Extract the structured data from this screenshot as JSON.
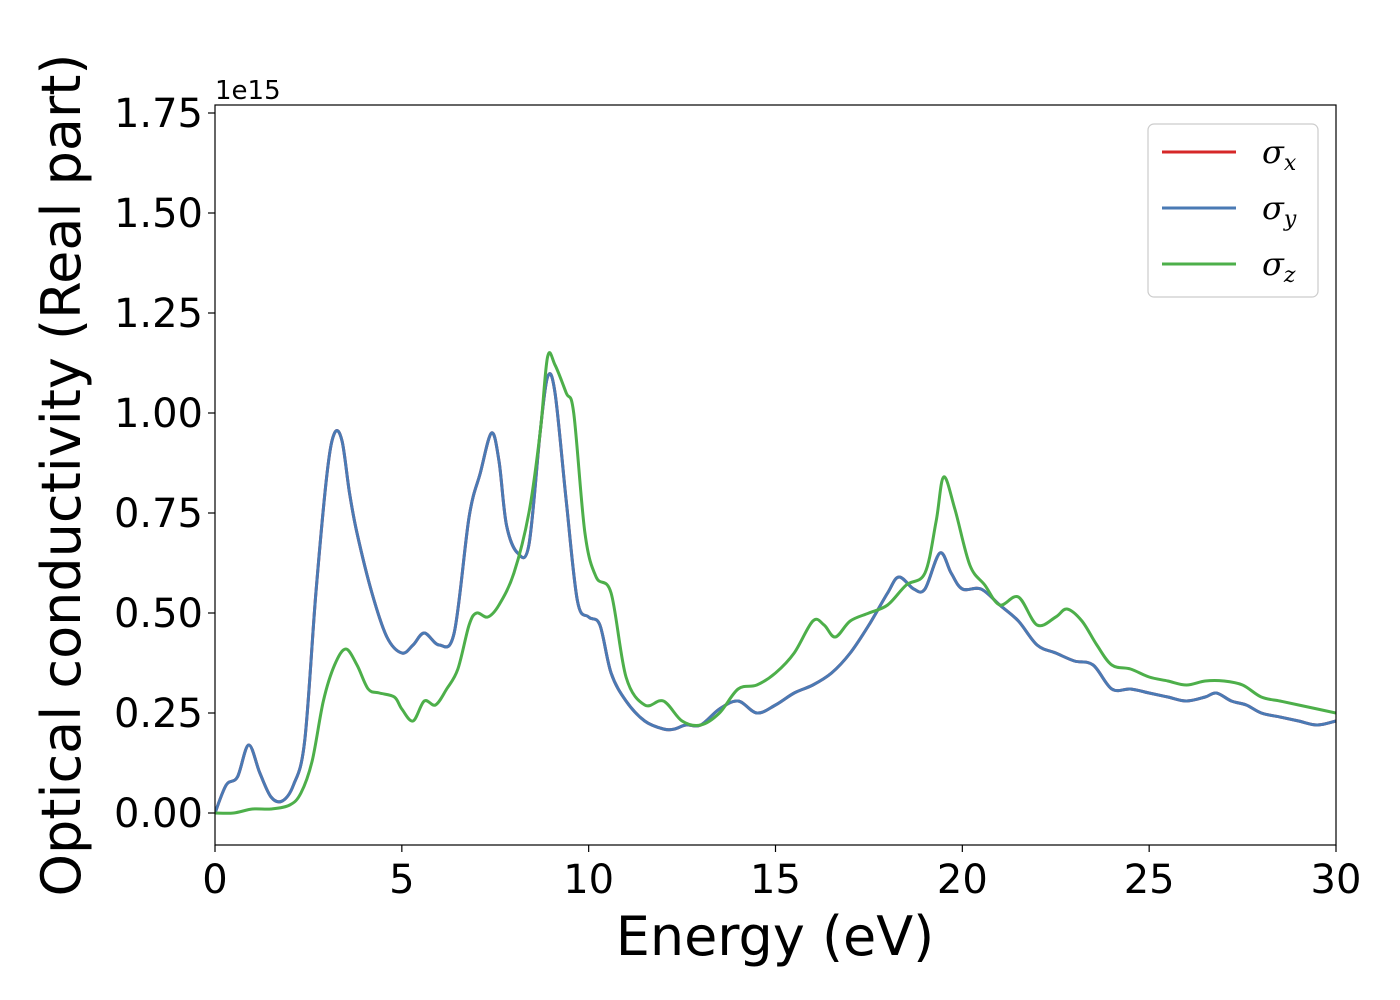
{
  "chart_data": {
    "type": "line",
    "xlabel": "Energy (eV)",
    "ylabel": "Optical conductivity (Real part)",
    "y_offset_text": "1e15",
    "y_scale": 1000000000000000.0,
    "xlim": [
      0,
      30
    ],
    "ylim": [
      -0.08,
      1.77
    ],
    "xticks": [
      0,
      5,
      10,
      15,
      20,
      25,
      30
    ],
    "xtick_labels": [
      "0",
      "5",
      "10",
      "15",
      "20",
      "25",
      "30"
    ],
    "yticks": [
      0.0,
      0.25,
      0.5,
      0.75,
      1.0,
      1.25,
      1.5,
      1.75
    ],
    "ytick_labels": [
      "0.00",
      "0.25",
      "0.50",
      "0.75",
      "1.00",
      "1.25",
      "1.50",
      "1.75"
    ],
    "grid": false,
    "legend_position": "top-right",
    "series": [
      {
        "name": "σx",
        "symbol": "σ",
        "subscript": "x",
        "color": "#d62728",
        "x": [
          0,
          0.3,
          0.6,
          0.9,
          1.2,
          1.5,
          1.8,
          2.1,
          2.4,
          2.7,
          3.0,
          3.2,
          3.4,
          3.6,
          3.8,
          4.2,
          4.6,
          5.0,
          5.3,
          5.6,
          6.0,
          6.4,
          6.8,
          7.1,
          7.4,
          7.6,
          7.8,
          8.1,
          8.4,
          8.7,
          8.9,
          9.1,
          9.4,
          9.7,
          10.0,
          10.3,
          10.6,
          11.0,
          11.5,
          12.0,
          12.3,
          12.6,
          13.0,
          13.5,
          14.0,
          14.5,
          15.0,
          15.5,
          16.0,
          16.5,
          17.0,
          17.5,
          18.0,
          18.3,
          18.7,
          19.0,
          19.4,
          19.7,
          20.0,
          20.5,
          21.0,
          21.5,
          22.0,
          22.5,
          23.0,
          23.5,
          24.0,
          24.5,
          25.0,
          25.5,
          26.0,
          26.5,
          26.8,
          27.2,
          27.6,
          28.0,
          28.5,
          29.0,
          29.5,
          30.0
        ],
        "y": [
          0.0,
          0.07,
          0.09,
          0.17,
          0.1,
          0.04,
          0.03,
          0.07,
          0.18,
          0.55,
          0.85,
          0.95,
          0.93,
          0.8,
          0.7,
          0.55,
          0.44,
          0.4,
          0.42,
          0.45,
          0.42,
          0.45,
          0.74,
          0.85,
          0.95,
          0.88,
          0.72,
          0.65,
          0.67,
          0.95,
          1.09,
          1.05,
          0.78,
          0.53,
          0.49,
          0.47,
          0.35,
          0.28,
          0.23,
          0.21,
          0.21,
          0.22,
          0.22,
          0.26,
          0.28,
          0.25,
          0.27,
          0.3,
          0.32,
          0.35,
          0.4,
          0.47,
          0.55,
          0.59,
          0.56,
          0.56,
          0.65,
          0.6,
          0.56,
          0.56,
          0.52,
          0.48,
          0.42,
          0.4,
          0.38,
          0.37,
          0.31,
          0.31,
          0.3,
          0.29,
          0.28,
          0.29,
          0.3,
          0.28,
          0.27,
          0.25,
          0.24,
          0.23,
          0.22,
          0.23
        ]
      },
      {
        "name": "σy",
        "symbol": "σ",
        "subscript": "y",
        "color": "#4a7ab4",
        "x": [
          0,
          0.3,
          0.6,
          0.9,
          1.2,
          1.5,
          1.8,
          2.1,
          2.4,
          2.7,
          3.0,
          3.2,
          3.4,
          3.6,
          3.8,
          4.2,
          4.6,
          5.0,
          5.3,
          5.6,
          6.0,
          6.4,
          6.8,
          7.1,
          7.4,
          7.6,
          7.8,
          8.1,
          8.4,
          8.7,
          8.9,
          9.1,
          9.4,
          9.7,
          10.0,
          10.3,
          10.6,
          11.0,
          11.5,
          12.0,
          12.3,
          12.6,
          13.0,
          13.5,
          14.0,
          14.5,
          15.0,
          15.5,
          16.0,
          16.5,
          17.0,
          17.5,
          18.0,
          18.3,
          18.7,
          19.0,
          19.4,
          19.7,
          20.0,
          20.5,
          21.0,
          21.5,
          22.0,
          22.5,
          23.0,
          23.5,
          24.0,
          24.5,
          25.0,
          25.5,
          26.0,
          26.5,
          26.8,
          27.2,
          27.6,
          28.0,
          28.5,
          29.0,
          29.5,
          30.0
        ],
        "y": [
          0.0,
          0.07,
          0.09,
          0.17,
          0.1,
          0.04,
          0.03,
          0.07,
          0.18,
          0.55,
          0.85,
          0.95,
          0.93,
          0.8,
          0.7,
          0.55,
          0.44,
          0.4,
          0.42,
          0.45,
          0.42,
          0.45,
          0.74,
          0.85,
          0.95,
          0.88,
          0.72,
          0.65,
          0.67,
          0.95,
          1.09,
          1.05,
          0.78,
          0.53,
          0.49,
          0.47,
          0.35,
          0.28,
          0.23,
          0.21,
          0.21,
          0.22,
          0.22,
          0.26,
          0.28,
          0.25,
          0.27,
          0.3,
          0.32,
          0.35,
          0.4,
          0.47,
          0.55,
          0.59,
          0.56,
          0.56,
          0.65,
          0.6,
          0.56,
          0.56,
          0.52,
          0.48,
          0.42,
          0.4,
          0.38,
          0.37,
          0.31,
          0.31,
          0.3,
          0.29,
          0.28,
          0.29,
          0.3,
          0.28,
          0.27,
          0.25,
          0.24,
          0.23,
          0.22,
          0.23
        ]
      },
      {
        "name": "σz",
        "symbol": "σ",
        "subscript": "z",
        "color": "#4daf4a",
        "x": [
          0,
          0.5,
          1.0,
          1.5,
          2.0,
          2.3,
          2.6,
          2.9,
          3.2,
          3.5,
          3.8,
          4.1,
          4.4,
          4.8,
          5.0,
          5.3,
          5.6,
          5.9,
          6.2,
          6.5,
          6.8,
          7.0,
          7.3,
          7.6,
          8.0,
          8.4,
          8.7,
          8.9,
          9.1,
          9.4,
          9.6,
          9.9,
          10.2,
          10.6,
          11.0,
          11.5,
          12.0,
          12.5,
          13.0,
          13.5,
          14.0,
          14.5,
          15.0,
          15.5,
          16.0,
          16.3,
          16.6,
          17.0,
          17.5,
          18.0,
          18.5,
          19.0,
          19.3,
          19.5,
          19.8,
          20.2,
          20.6,
          21.0,
          21.5,
          22.0,
          22.5,
          22.8,
          23.2,
          23.6,
          24.0,
          24.5,
          25.0,
          25.5,
          26.0,
          26.5,
          27.0,
          27.5,
          28.0,
          28.5,
          29.0,
          29.5,
          30.0
        ],
        "y": [
          0.0,
          0.0,
          0.01,
          0.01,
          0.02,
          0.05,
          0.13,
          0.28,
          0.37,
          0.41,
          0.37,
          0.31,
          0.3,
          0.29,
          0.26,
          0.23,
          0.28,
          0.27,
          0.31,
          0.36,
          0.47,
          0.5,
          0.49,
          0.52,
          0.6,
          0.75,
          0.95,
          1.14,
          1.12,
          1.05,
          1.0,
          0.7,
          0.59,
          0.55,
          0.34,
          0.27,
          0.28,
          0.23,
          0.22,
          0.25,
          0.31,
          0.32,
          0.35,
          0.4,
          0.48,
          0.47,
          0.44,
          0.48,
          0.5,
          0.52,
          0.57,
          0.6,
          0.73,
          0.84,
          0.76,
          0.62,
          0.57,
          0.52,
          0.54,
          0.47,
          0.49,
          0.51,
          0.48,
          0.42,
          0.37,
          0.36,
          0.34,
          0.33,
          0.32,
          0.33,
          0.33,
          0.32,
          0.29,
          0.28,
          0.27,
          0.26,
          0.25
        ]
      }
    ]
  }
}
